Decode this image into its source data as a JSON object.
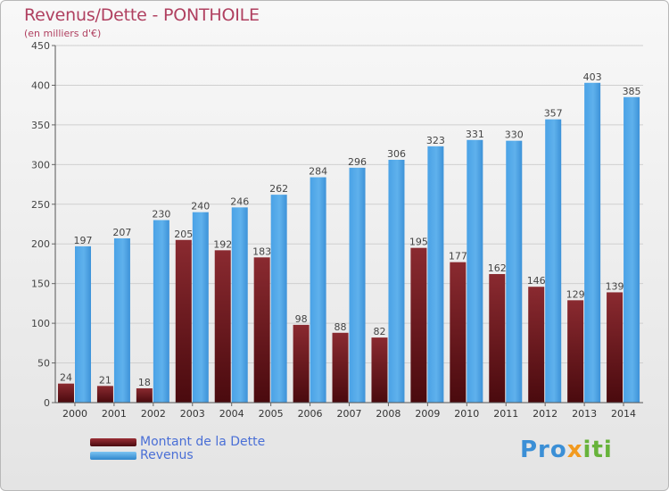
{
  "title": "Revenus/Dette - PONTHOILE",
  "subtitle": "(en milliers d'€)",
  "chart_data": {
    "type": "bar",
    "categories": [
      "2000",
      "2001",
      "2002",
      "2003",
      "2004",
      "2005",
      "2006",
      "2007",
      "2008",
      "2009",
      "2010",
      "2011",
      "2012",
      "2013",
      "2014"
    ],
    "series": [
      {
        "name": "Montant de la Dette",
        "color": "#7a1c22",
        "values": [
          24,
          21,
          18,
          205,
          192,
          183,
          98,
          88,
          82,
          195,
          177,
          162,
          146,
          129,
          139
        ]
      },
      {
        "name": "Revenus",
        "color": "#4ea6e8",
        "values": [
          197,
          207,
          230,
          240,
          246,
          262,
          284,
          296,
          306,
          323,
          331,
          330,
          357,
          403,
          385
        ]
      }
    ],
    "ylim": [
      0,
      450
    ],
    "yticks": [
      0,
      50,
      100,
      150,
      200,
      250,
      300,
      350,
      400,
      450
    ],
    "grid": true,
    "legend_position": "bottom-left"
  },
  "legend": {
    "dette_label": "Montant de la Dette",
    "revenus_label": "Revenus"
  },
  "logo": {
    "part1": "Pro",
    "part2": "x",
    "part3": "iti"
  }
}
